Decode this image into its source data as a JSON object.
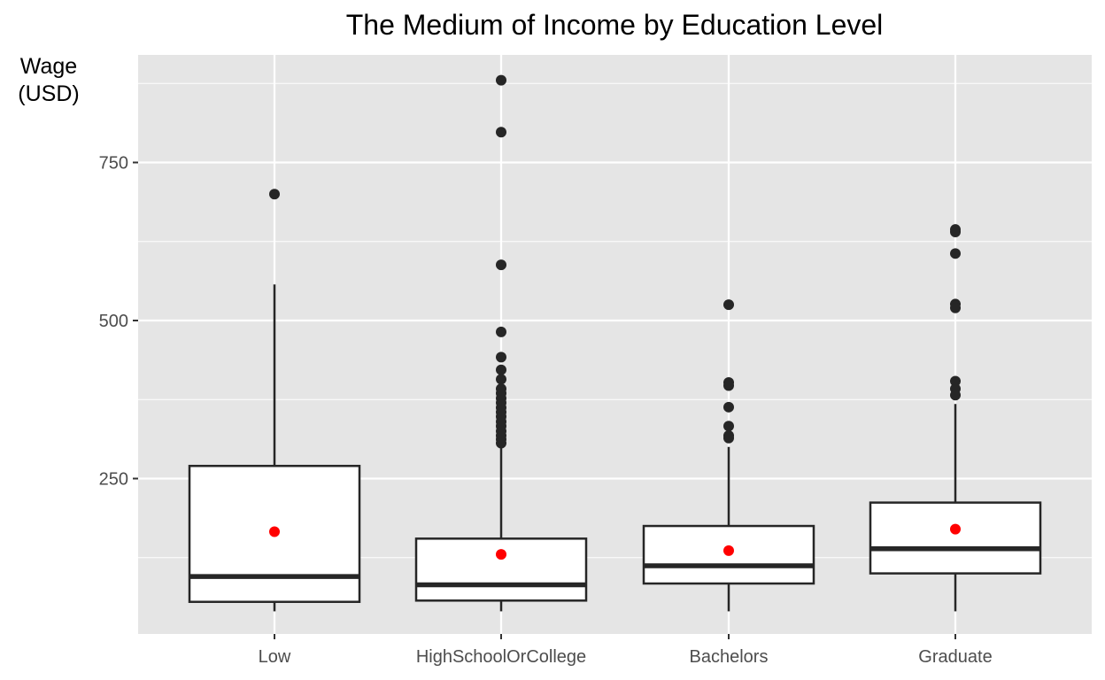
{
  "chart_data": {
    "type": "box",
    "title": "The Medium of Income by Education Level",
    "xlabel": "",
    "ylabel_lines": [
      "Wage",
      "(USD)"
    ],
    "ylim": [
      0,
      920
    ],
    "yticks": [
      250,
      500,
      750
    ],
    "grid": true,
    "categories": [
      "Low",
      "HighSchoolOrCollege",
      "Bachelors",
      "Graduate"
    ],
    "boxes": [
      {
        "category": "Low",
        "whisker_low": 40,
        "q1": 55,
        "median": 95,
        "q3": 270,
        "whisker_high": 557,
        "mean": 166,
        "outliers": [
          700
        ]
      },
      {
        "category": "HighSchoolOrCollege",
        "whisker_low": 40,
        "q1": 57,
        "median": 82,
        "q3": 155,
        "whisker_high": 300,
        "mean": 130,
        "outliers": [
          880,
          798,
          588,
          482,
          442,
          422,
          407,
          392,
          385,
          377,
          370,
          362,
          355,
          348,
          340,
          333,
          325,
          318,
          312,
          306
        ]
      },
      {
        "category": "Bachelors",
        "whisker_low": 40,
        "q1": 84,
        "median": 112,
        "q3": 175,
        "whisker_high": 300,
        "mean": 136,
        "outliers": [
          525,
          402,
          397,
          363,
          333,
          318,
          314
        ]
      },
      {
        "category": "Graduate",
        "whisker_low": 40,
        "q1": 100,
        "median": 139,
        "q3": 212,
        "whisker_high": 368,
        "mean": 170,
        "outliers": [
          644,
          640,
          606,
          526,
          520,
          404,
          392,
          382
        ]
      }
    ],
    "colors": {
      "panel": "#e5e5e5",
      "grid": "#ffffff",
      "box_fill": "#ffffff",
      "box_line": "#262626",
      "mean_point": "#ff0000",
      "outlier": "#262626"
    }
  }
}
